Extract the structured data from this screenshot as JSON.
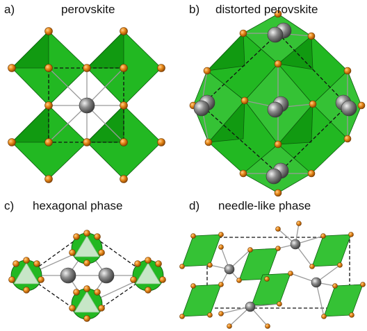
{
  "panels": [
    {
      "letter": "a)",
      "title": "perovskite"
    },
    {
      "letter": "b)",
      "title": "distorted perovskite"
    },
    {
      "letter": "c)",
      "title": "hexagonal phase"
    },
    {
      "letter": "d)",
      "title": "needle-like phase"
    }
  ],
  "colors": {
    "octahedron": "#22b822",
    "anion": "#e07810",
    "cation": "#808080",
    "bond": "#9a9a9a",
    "unit_cell": "#111111"
  }
}
